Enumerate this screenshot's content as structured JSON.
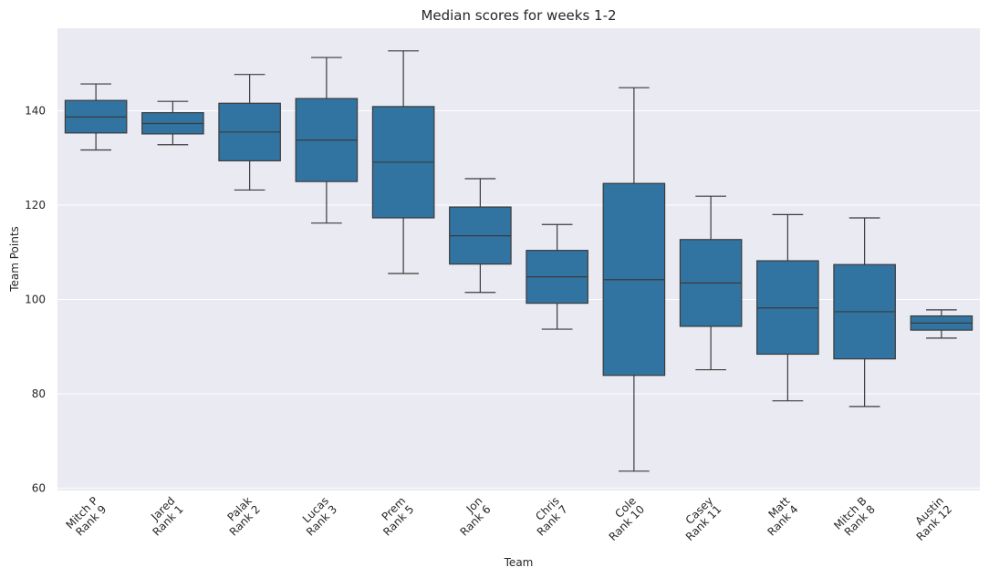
{
  "chart_data": {
    "type": "box",
    "title": "Median scores for weeks 1-2",
    "xlabel": "Team",
    "ylabel": "Team Points",
    "ylim": [
      59.5,
      157.5
    ],
    "yticks": [
      60,
      80,
      100,
      120,
      140
    ],
    "grid": true,
    "colors": {
      "box": "#3274a1",
      "line": "#3b3b3b",
      "background": "#eaeaf2",
      "grid": "#ffffff"
    },
    "categories": [
      [
        "Mitch P",
        "Rank 9"
      ],
      [
        "Jared",
        "Rank 1"
      ],
      [
        "Palak",
        "Rank 2"
      ],
      [
        "Lucas",
        "Rank 3"
      ],
      [
        "Prem",
        "Rank 5"
      ],
      [
        "Jon",
        "Rank 6"
      ],
      [
        "Chris",
        "Rank 7"
      ],
      [
        "Cole",
        "Rank 10"
      ],
      [
        "Casey",
        "Rank 11"
      ],
      [
        "Matt",
        "Rank 4"
      ],
      [
        "Mitch B",
        "Rank 8"
      ],
      [
        "Austin",
        "Rank 12"
      ]
    ],
    "boxes": [
      {
        "min": 131.7,
        "q1": 135.3,
        "median": 138.7,
        "q3": 142.2,
        "max": 145.7
      },
      {
        "min": 132.8,
        "q1": 135.1,
        "median": 137.3,
        "q3": 139.6,
        "max": 142.0
      },
      {
        "min": 123.2,
        "q1": 129.4,
        "median": 135.5,
        "q3": 141.6,
        "max": 147.7
      },
      {
        "min": 116.2,
        "q1": 125.0,
        "median": 133.8,
        "q3": 142.6,
        "max": 151.3
      },
      {
        "min": 105.5,
        "q1": 117.3,
        "median": 129.1,
        "q3": 140.9,
        "max": 152.7
      },
      {
        "min": 101.5,
        "q1": 107.5,
        "median": 113.5,
        "q3": 119.6,
        "max": 125.6
      },
      {
        "min": 93.7,
        "q1": 99.2,
        "median": 104.8,
        "q3": 110.4,
        "max": 115.9
      },
      {
        "min": 63.6,
        "q1": 83.9,
        "median": 104.2,
        "q3": 124.6,
        "max": 144.9
      },
      {
        "min": 85.1,
        "q1": 94.3,
        "median": 103.5,
        "q3": 112.7,
        "max": 121.9
      },
      {
        "min": 78.5,
        "q1": 88.4,
        "median": 98.2,
        "q3": 108.2,
        "max": 118.0
      },
      {
        "min": 77.3,
        "q1": 87.4,
        "median": 97.4,
        "q3": 107.4,
        "max": 117.3
      },
      {
        "min": 91.8,
        "q1": 93.5,
        "median": 95.0,
        "q3": 96.5,
        "max": 97.8
      }
    ]
  }
}
